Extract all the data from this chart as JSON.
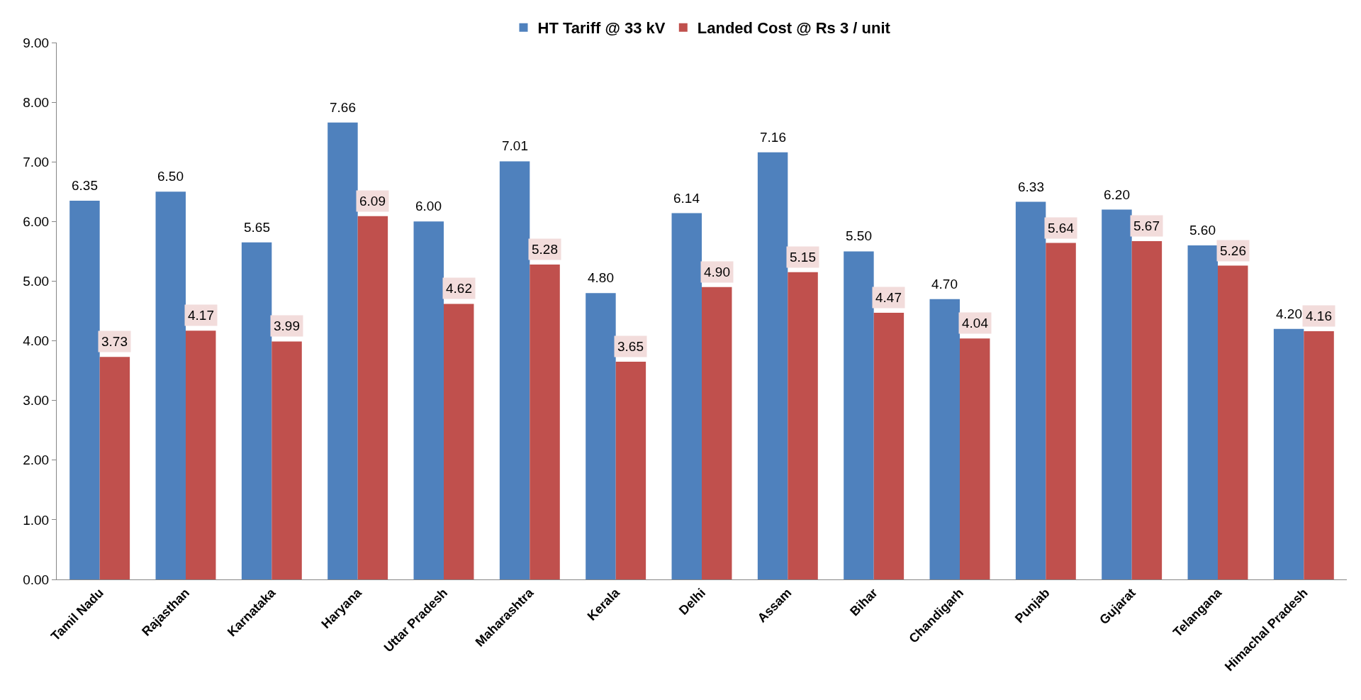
{
  "chart_data": {
    "type": "bar",
    "categories": [
      "Tamil Nadu",
      "Rajasthan",
      "Karnataka",
      "Haryana",
      "Uttar Pradesh",
      "Maharashtra",
      "Kerala",
      "Delhi",
      "Assam",
      "Bihar",
      "Chandigarh",
      "Punjab",
      "Gujarat",
      "Telangana",
      "Himachal Pradesh"
    ],
    "series": [
      {
        "name": "HT Tariff @ 33 kV",
        "color": "#4f81bd",
        "values": [
          6.35,
          6.5,
          5.65,
          7.66,
          6.0,
          7.01,
          4.8,
          6.14,
          7.16,
          5.5,
          4.7,
          6.33,
          6.2,
          5.6,
          4.2
        ],
        "value_labels": [
          "6.35",
          "6.50",
          "5.65",
          "7.66",
          "6.00",
          "7.01",
          "4.80",
          "6.14",
          "7.16",
          "5.50",
          "4.70",
          "6.33",
          "6.20",
          "5.60",
          "4.20"
        ]
      },
      {
        "name": "Landed Cost @ Rs 3 / unit",
        "color": "#c0504d",
        "values": [
          3.73,
          4.17,
          3.99,
          6.09,
          4.62,
          5.28,
          3.65,
          4.9,
          5.15,
          4.47,
          4.04,
          5.64,
          5.67,
          5.26,
          4.16
        ],
        "value_labels": [
          "3.73",
          "4.17",
          "3.99",
          "6.09",
          "4.62",
          "5.28",
          "3.65",
          "4.90",
          "5.15",
          "4.47",
          "4.04",
          "5.64",
          "5.67",
          "5.26",
          "4.16"
        ]
      }
    ],
    "ylim": [
      0,
      9
    ],
    "yticks": [
      {
        "value": 0,
        "label": "0.00"
      },
      {
        "value": 1,
        "label": "1.00"
      },
      {
        "value": 2,
        "label": "2.00"
      },
      {
        "value": 3,
        "label": "3.00"
      },
      {
        "value": 4,
        "label": "4.00"
      },
      {
        "value": 5,
        "label": "5.00"
      },
      {
        "value": 6,
        "label": "6.00"
      },
      {
        "value": 7,
        "label": "7.00"
      },
      {
        "value": 8,
        "label": "8.00"
      },
      {
        "value": 9,
        "label": "9.00"
      }
    ],
    "grid": false,
    "legend": "top"
  }
}
